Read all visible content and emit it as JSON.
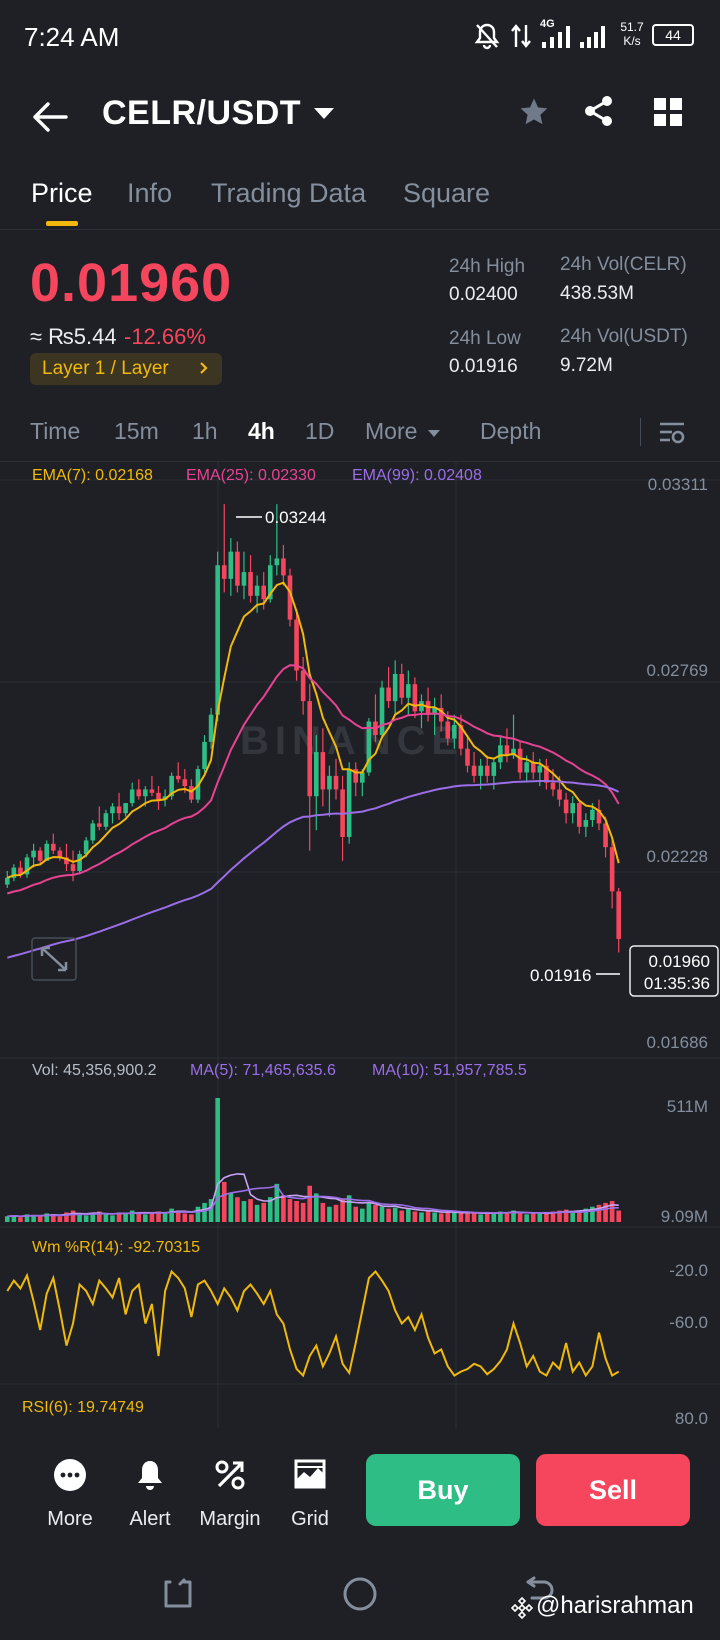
{
  "status_bar": {
    "time": "7:24 AM",
    "net_type": "4G",
    "speed_value": "51.7",
    "speed_unit": "K/s",
    "battery": "44"
  },
  "header": {
    "pair": "CELR/USDT",
    "icons": [
      "back-arrow-icon",
      "star-icon",
      "share-icon",
      "grid-icon"
    ]
  },
  "tabs": [
    {
      "label": "Price",
      "active": true
    },
    {
      "label": "Info"
    },
    {
      "label": "Trading Data"
    },
    {
      "label": "Square"
    }
  ],
  "summary": {
    "last_price": "0.01960",
    "fiat": "≈ ₨5.44",
    "change": "-12.66%",
    "tag": "Layer 1 / Layer",
    "high_label": "24h High",
    "high": "0.02400",
    "low_label": "24h Low",
    "low": "0.01916",
    "vol_base_label": "24h Vol(CELR)",
    "vol_base": "438.53M",
    "vol_quote_label": "24h Vol(USDT)",
    "vol_quote": "9.72M"
  },
  "intervals": {
    "time": "Time",
    "m15": "15m",
    "h1": "1h",
    "h4": "4h",
    "d1": "1D",
    "more": "More",
    "depth": "Depth",
    "active": "4h"
  },
  "main_chart": {
    "ema7": "EMA(7): 0.02168",
    "ema25": "EMA(25): 0.02330",
    "ema99": "EMA(99): 0.02408",
    "y_labels": [
      "0.03311",
      "0.02769",
      "0.02228",
      "0.01686"
    ],
    "high_marker": "0.03244",
    "low_marker": "0.01916",
    "current_price": "0.01960",
    "countdown": "01:35:36",
    "watermark": "BINANCE"
  },
  "volume_chart": {
    "vol": "Vol: 45,356,900.2",
    "ma5": "MA(5): 71,465,635.6",
    "ma10": "MA(10): 51,957,785.5",
    "y_labels": [
      "511M",
      "9.09M"
    ]
  },
  "wr_chart": {
    "label": "Wm %R(14): -92.70315",
    "y_labels": [
      "-20.0",
      "-60.0"
    ]
  },
  "rsi_chart": {
    "label": "RSI(6): 19.74749",
    "y_labels": [
      "80.0"
    ]
  },
  "bottom_bar": {
    "more": "More",
    "alert": "Alert",
    "margin": "Margin",
    "grid": "Grid",
    "buy": "Buy",
    "sell": "Sell"
  },
  "watermark": "@harisrahman",
  "colors": {
    "up": "#2ebd85",
    "down": "#f6465d",
    "accent": "#f0b90b",
    "ema7": "#f0b90b",
    "ema25": "#e84393",
    "ema99": "#9b6ee8",
    "bg": "#1e2026"
  },
  "chart_data": {
    "type": "candlestick",
    "interval": "4h",
    "y_range": [
      0.01686,
      0.03311
    ],
    "y_ticks": [
      0.03311,
      0.02769,
      0.02228,
      0.01686
    ],
    "candles": [
      [
        0.0212,
        0.0216,
        0.0211,
        0.0214
      ],
      [
        0.0214,
        0.0218,
        0.0213,
        0.0217
      ],
      [
        0.0217,
        0.0219,
        0.0214,
        0.0215
      ],
      [
        0.0215,
        0.0221,
        0.0214,
        0.022
      ],
      [
        0.022,
        0.0224,
        0.0217,
        0.0222
      ],
      [
        0.0222,
        0.0223,
        0.0218,
        0.0219
      ],
      [
        0.0219,
        0.0225,
        0.0219,
        0.0224
      ],
      [
        0.0224,
        0.0227,
        0.0221,
        0.0222
      ],
      [
        0.0222,
        0.0223,
        0.0219,
        0.022
      ],
      [
        0.022,
        0.0224,
        0.0216,
        0.0218
      ],
      [
        0.0218,
        0.0222,
        0.0213,
        0.0216
      ],
      [
        0.0216,
        0.0222,
        0.0215,
        0.0221
      ],
      [
        0.0221,
        0.0226,
        0.022,
        0.0225
      ],
      [
        0.0225,
        0.0231,
        0.0224,
        0.023
      ],
      [
        0.023,
        0.0235,
        0.0228,
        0.0229
      ],
      [
        0.0229,
        0.0234,
        0.0228,
        0.0233
      ],
      [
        0.0233,
        0.0236,
        0.023,
        0.0235
      ],
      [
        0.0235,
        0.0239,
        0.0231,
        0.0233
      ],
      [
        0.0233,
        0.0236,
        0.0232,
        0.0236
      ],
      [
        0.0236,
        0.0242,
        0.0235,
        0.024
      ],
      [
        0.024,
        0.0243,
        0.0237,
        0.0238
      ],
      [
        0.0238,
        0.0241,
        0.0235,
        0.024
      ],
      [
        0.024,
        0.0244,
        0.0238,
        0.0239
      ],
      [
        0.0239,
        0.0241,
        0.0234,
        0.0237
      ],
      [
        0.0237,
        0.024,
        0.0235,
        0.0238
      ],
      [
        0.0238,
        0.0245,
        0.0237,
        0.0244
      ],
      [
        0.0244,
        0.0248,
        0.0242,
        0.0243
      ],
      [
        0.0243,
        0.0246,
        0.0239,
        0.0241
      ],
      [
        0.0241,
        0.0243,
        0.0236,
        0.0237
      ],
      [
        0.0237,
        0.0247,
        0.0236,
        0.0246
      ],
      [
        0.0246,
        0.0256,
        0.0245,
        0.0254
      ],
      [
        0.0254,
        0.0264,
        0.0252,
        0.0262
      ],
      [
        0.0262,
        0.031,
        0.026,
        0.0306
      ],
      [
        0.0306,
        0.0324,
        0.0298,
        0.0302
      ],
      [
        0.0302,
        0.0314,
        0.0297,
        0.031
      ],
      [
        0.031,
        0.0313,
        0.0298,
        0.03
      ],
      [
        0.03,
        0.031,
        0.0296,
        0.0304
      ],
      [
        0.0304,
        0.0309,
        0.0295,
        0.0297
      ],
      [
        0.0297,
        0.0303,
        0.0292,
        0.03
      ],
      [
        0.03,
        0.0304,
        0.0293,
        0.0296
      ],
      [
        0.0296,
        0.0309,
        0.0295,
        0.0306
      ],
      [
        0.0306,
        0.0324,
        0.0303,
        0.0308
      ],
      [
        0.0308,
        0.0312,
        0.03,
        0.0303
      ],
      [
        0.0303,
        0.0305,
        0.0288,
        0.029
      ],
      [
        0.029,
        0.0293,
        0.0272,
        0.0275
      ],
      [
        0.0275,
        0.0279,
        0.0262,
        0.0266
      ],
      [
        0.0266,
        0.0271,
        0.0222,
        0.0238
      ],
      [
        0.0238,
        0.0256,
        0.0228,
        0.0251
      ],
      [
        0.0251,
        0.0258,
        0.0235,
        0.024
      ],
      [
        0.024,
        0.0247,
        0.0232,
        0.0244
      ],
      [
        0.0244,
        0.0249,
        0.0237,
        0.024
      ],
      [
        0.024,
        0.0244,
        0.0219,
        0.0226
      ],
      [
        0.0226,
        0.0248,
        0.0224,
        0.0246
      ],
      [
        0.0246,
        0.0248,
        0.0238,
        0.0242
      ],
      [
        0.0242,
        0.0246,
        0.0238,
        0.0245
      ],
      [
        0.0245,
        0.0261,
        0.0244,
        0.026
      ],
      [
        0.026,
        0.0268,
        0.0254,
        0.0256
      ],
      [
        0.0256,
        0.0272,
        0.0255,
        0.027
      ],
      [
        0.027,
        0.0276,
        0.0264,
        0.0266
      ],
      [
        0.0266,
        0.0278,
        0.0262,
        0.0274
      ],
      [
        0.0274,
        0.0277,
        0.0265,
        0.0267
      ],
      [
        0.0267,
        0.0275,
        0.0262,
        0.0271
      ],
      [
        0.0271,
        0.0273,
        0.0261,
        0.0263
      ],
      [
        0.0263,
        0.0268,
        0.0258,
        0.0266
      ],
      [
        0.0266,
        0.027,
        0.026,
        0.0262
      ],
      [
        0.0262,
        0.0267,
        0.0256,
        0.0264
      ],
      [
        0.0264,
        0.0268,
        0.0257,
        0.026
      ],
      [
        0.026,
        0.0263,
        0.0253,
        0.0255
      ],
      [
        0.0255,
        0.0262,
        0.0252,
        0.0259
      ],
      [
        0.0259,
        0.0262,
        0.025,
        0.0252
      ],
      [
        0.0252,
        0.0256,
        0.0245,
        0.0247
      ],
      [
        0.0247,
        0.0251,
        0.0242,
        0.0244
      ],
      [
        0.0244,
        0.0249,
        0.024,
        0.0247
      ],
      [
        0.0247,
        0.025,
        0.0242,
        0.0244
      ],
      [
        0.0244,
        0.0249,
        0.024,
        0.0248
      ],
      [
        0.0248,
        0.0256,
        0.0246,
        0.0253
      ],
      [
        0.0253,
        0.0258,
        0.0248,
        0.025
      ],
      [
        0.025,
        0.0262,
        0.0249,
        0.0252
      ],
      [
        0.0252,
        0.0254,
        0.0243,
        0.0245
      ],
      [
        0.0245,
        0.025,
        0.0242,
        0.0248
      ],
      [
        0.0248,
        0.0251,
        0.0243,
        0.0245
      ],
      [
        0.0245,
        0.0249,
        0.0241,
        0.0247
      ],
      [
        0.0247,
        0.0249,
        0.024,
        0.0242
      ],
      [
        0.0242,
        0.0246,
        0.0238,
        0.024
      ],
      [
        0.024,
        0.0244,
        0.0235,
        0.0237
      ],
      [
        0.0237,
        0.0239,
        0.023,
        0.0233
      ],
      [
        0.0233,
        0.0238,
        0.023,
        0.0236
      ],
      [
        0.0236,
        0.0237,
        0.0227,
        0.0229
      ],
      [
        0.0229,
        0.0233,
        0.0226,
        0.0231
      ],
      [
        0.0231,
        0.0236,
        0.0229,
        0.0234
      ],
      [
        0.0234,
        0.0237,
        0.0228,
        0.023
      ],
      [
        0.023,
        0.0232,
        0.022,
        0.0223
      ],
      [
        0.0223,
        0.0226,
        0.0205,
        0.021
      ],
      [
        0.021,
        0.0211,
        0.0192,
        0.0196
      ]
    ],
    "volume_series": [
      6,
      7,
      5,
      8,
      7,
      6,
      9,
      8,
      6,
      10,
      12,
      8,
      7,
      9,
      11,
      8,
      7,
      10,
      9,
      12,
      10,
      8,
      9,
      11,
      10,
      14,
      12,
      9,
      8,
      16,
      20,
      24,
      130,
      42,
      30,
      26,
      22,
      24,
      18,
      20,
      26,
      40,
      28,
      24,
      22,
      20,
      38,
      30,
      20,
      16,
      18,
      24,
      28,
      16,
      14,
      20,
      18,
      16,
      14,
      15,
      12,
      14,
      11,
      10,
      12,
      10,
      9,
      11,
      10,
      9,
      10,
      9,
      8,
      10,
      9,
      11,
      10,
      12,
      9,
      8,
      9,
      10,
      9,
      11,
      12,
      13,
      10,
      12,
      14,
      16,
      18,
      20,
      22,
      12
    ],
    "wr_series": [
      -30,
      -22,
      -28,
      -18,
      -38,
      -60,
      -32,
      -20,
      -45,
      -72,
      -55,
      -25,
      -30,
      -40,
      -22,
      -28,
      -35,
      -20,
      -48,
      -30,
      -25,
      -55,
      -40,
      -80,
      -30,
      -15,
      -20,
      -28,
      -50,
      -25,
      -22,
      -30,
      -40,
      -28,
      -35,
      -45,
      -30,
      -25,
      -32,
      -40,
      -30,
      -48,
      -55,
      -75,
      -90,
      -95,
      -80,
      -72,
      -88,
      -78,
      -65,
      -86,
      -93,
      -70,
      -45,
      -20,
      -15,
      -22,
      -30,
      -45,
      -55,
      -50,
      -60,
      -48,
      -66,
      -78,
      -75,
      -88,
      -95,
      -92,
      -90,
      -86,
      -88,
      -94,
      -90,
      -84,
      -75,
      -55,
      -70,
      -88,
      -80,
      -92,
      -95,
      -85,
      -90,
      -70,
      -92,
      -85,
      -95,
      -88,
      -62,
      -82,
      -95,
      -92
    ]
  }
}
